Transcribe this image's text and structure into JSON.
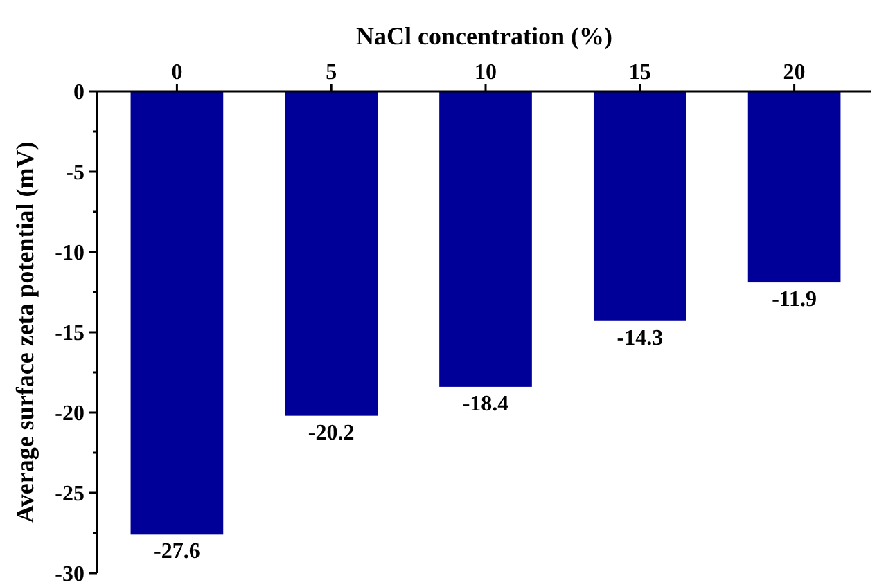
{
  "chart_data": {
    "type": "bar",
    "x2label": "NaCl concentration (%)",
    "ylabel": "Average surface zeta potential (mV)",
    "categories": [
      "0",
      "5",
      "10",
      "15",
      "20"
    ],
    "values": [
      -27.6,
      -20.2,
      -18.4,
      -14.3,
      -11.9
    ],
    "color": "#000099",
    "ylim": [
      -30,
      0
    ],
    "yticks": [
      0,
      {
        "value": -2.5,
        "label": null
      },
      -5,
      {
        "value": -7.5,
        "label": null
      },
      -10,
      {
        "value": -12.5,
        "label": null
      },
      -15,
      {
        "value": -17.5,
        "label": null
      },
      -20,
      {
        "value": -22.5,
        "label": null
      },
      -25,
      {
        "value": -27.5,
        "label": null
      },
      -30
    ],
    "data_labels": true,
    "grid": false
  }
}
